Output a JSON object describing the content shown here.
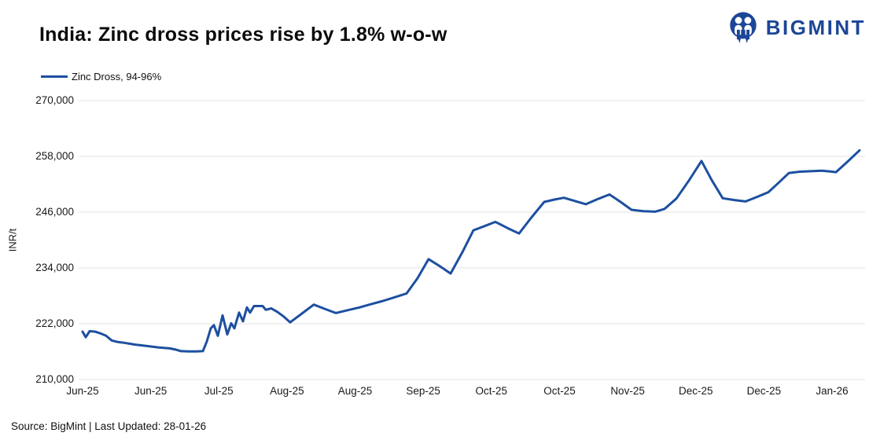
{
  "header": {
    "title": "India: Zinc dross prices rise by 1.8% w-o-w"
  },
  "brand": {
    "name": "BIGMINT",
    "color": "#1c4697",
    "icon": "bigmint-people-logo"
  },
  "legend": {
    "label": "Zinc Dross, 94-96%"
  },
  "footer": {
    "source": "Source: BigMint | Last Updated: 28-01-26"
  },
  "chart_data": {
    "type": "line",
    "title": "India: Zinc dross prices rise by 1.8% w-o-w",
    "series_name": "Zinc Dross, 94-96%",
    "xlabel": "",
    "ylabel": "INR/t",
    "ylim": [
      210000,
      270000
    ],
    "yticks": [
      210000,
      222000,
      234000,
      246000,
      258000,
      270000
    ],
    "ytick_labels": [
      "210,000",
      "222,000",
      "234,000",
      "246,000",
      "258,000",
      "270,000"
    ],
    "xtick_labels": [
      "Jun-25",
      "Jun-25",
      "Jul-25",
      "Aug-25",
      "Aug-25",
      "Sep-25",
      "Oct-25",
      "Oct-25",
      "Nov-25",
      "Dec-25",
      "Dec-25",
      "Jan-26"
    ],
    "grid": "horizontal",
    "legend_position": "top-left",
    "line_color": "#1d4fa0",
    "grid_color": "#e3e3e3",
    "last_change_pct": "+1.8% w-o-w",
    "points": [
      [
        0.005,
        220300
      ],
      [
        0.009,
        219100
      ],
      [
        0.014,
        220400
      ],
      [
        0.021,
        220300
      ],
      [
        0.028,
        219900
      ],
      [
        0.035,
        219400
      ],
      [
        0.042,
        218400
      ],
      [
        0.049,
        218100
      ],
      [
        0.058,
        217900
      ],
      [
        0.072,
        217500
      ],
      [
        0.087,
        217200
      ],
      [
        0.102,
        216900
      ],
      [
        0.116,
        216700
      ],
      [
        0.124,
        216400
      ],
      [
        0.13,
        216100
      ],
      [
        0.14,
        216050
      ],
      [
        0.15,
        216050
      ],
      [
        0.158,
        216100
      ],
      [
        0.163,
        218200
      ],
      [
        0.168,
        221000
      ],
      [
        0.172,
        221700
      ],
      [
        0.177,
        219400
      ],
      [
        0.183,
        223800
      ],
      [
        0.189,
        219700
      ],
      [
        0.194,
        222100
      ],
      [
        0.198,
        221000
      ],
      [
        0.204,
        224400
      ],
      [
        0.209,
        222500
      ],
      [
        0.214,
        225500
      ],
      [
        0.218,
        224400
      ],
      [
        0.223,
        225800
      ],
      [
        0.234,
        225800
      ],
      [
        0.238,
        225000
      ],
      [
        0.245,
        225300
      ],
      [
        0.253,
        224500
      ],
      [
        0.261,
        223500
      ],
      [
        0.269,
        222300
      ],
      [
        0.284,
        224200
      ],
      [
        0.299,
        226100
      ],
      [
        0.313,
        225200
      ],
      [
        0.327,
        224300
      ],
      [
        0.342,
        224900
      ],
      [
        0.357,
        225500
      ],
      [
        0.372,
        226200
      ],
      [
        0.387,
        226900
      ],
      [
        0.402,
        227700
      ],
      [
        0.417,
        228500
      ],
      [
        0.431,
        231800
      ],
      [
        0.445,
        235900
      ],
      [
        0.459,
        234400
      ],
      [
        0.473,
        232800
      ],
      [
        0.488,
        237400
      ],
      [
        0.502,
        242100
      ],
      [
        0.516,
        243000
      ],
      [
        0.53,
        243900
      ],
      [
        0.545,
        242600
      ],
      [
        0.56,
        241400
      ],
      [
        0.576,
        244900
      ],
      [
        0.592,
        248200
      ],
      [
        0.605,
        248700
      ],
      [
        0.617,
        249100
      ],
      [
        0.631,
        248400
      ],
      [
        0.645,
        247700
      ],
      [
        0.66,
        248800
      ],
      [
        0.675,
        249800
      ],
      [
        0.69,
        248100
      ],
      [
        0.703,
        246500
      ],
      [
        0.718,
        246200
      ],
      [
        0.733,
        246100
      ],
      [
        0.745,
        246700
      ],
      [
        0.76,
        248900
      ],
      [
        0.776,
        252800
      ],
      [
        0.792,
        257000
      ],
      [
        0.805,
        252900
      ],
      [
        0.819,
        249000
      ],
      [
        0.834,
        248600
      ],
      [
        0.848,
        248300
      ],
      [
        0.863,
        249300
      ],
      [
        0.877,
        250300
      ],
      [
        0.89,
        252300
      ],
      [
        0.903,
        254400
      ],
      [
        0.917,
        254700
      ],
      [
        0.931,
        254800
      ],
      [
        0.945,
        254900
      ],
      [
        0.956,
        254750
      ],
      [
        0.963,
        254600
      ],
      [
        0.978,
        256900
      ],
      [
        0.993,
        259300
      ]
    ]
  }
}
